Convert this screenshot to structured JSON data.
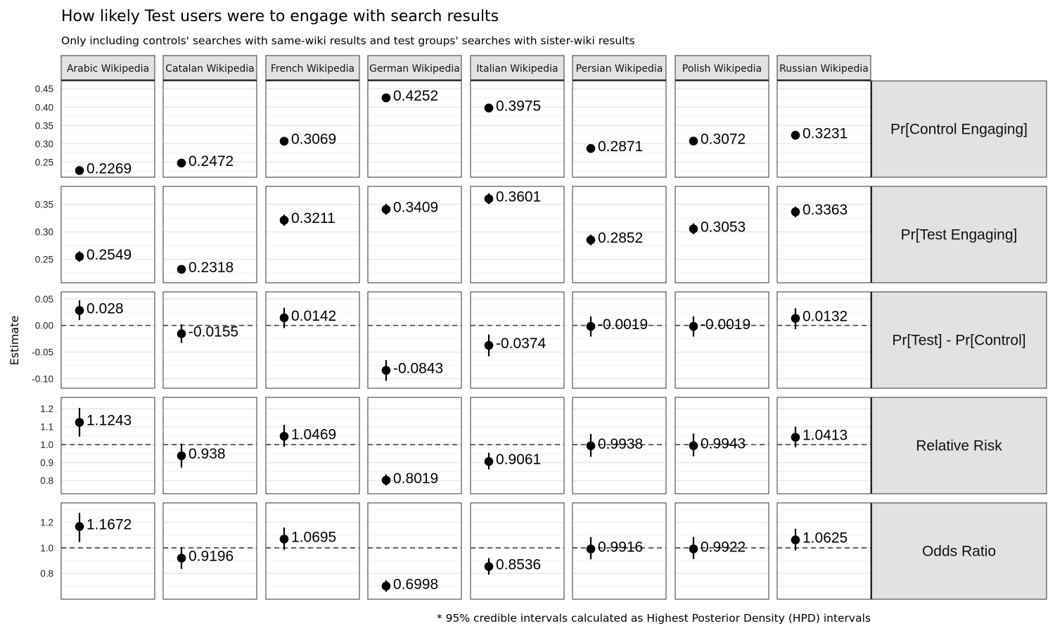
{
  "title": "How likely Test users were to engage with search results",
  "subtitle": "Only including controls' searches with same-wiki results and test groups' searches with sister-wiki results",
  "y_axis_label": "Estimate",
  "caption": "* 95% credible intervals calculated as Highest Posterior Density (HPD) intervals",
  "chart_data": {
    "type": "scatter",
    "title": "How likely Test users were to engage with search results",
    "subtitle": "Only including controls' searches with same-wiki results and test groups' searches with sister-wiki results",
    "ylabel": "Estimate",
    "grid": true,
    "columns": [
      "Arabic Wikipedia",
      "Catalan Wikipedia",
      "French Wikipedia",
      "German Wikipedia",
      "Italian Wikipedia",
      "Persian Wikipedia",
      "Polish Wikipedia",
      "Russian Wikipedia"
    ],
    "rows": [
      {
        "name": "Pr[Control Engaging]",
        "ylim": [
          0.22,
          0.46
        ],
        "ticks": [
          0.25,
          0.3,
          0.35,
          0.4,
          0.45
        ],
        "tick_labels": [
          "0.25",
          "0.30",
          "0.35",
          "0.40",
          "0.45"
        ],
        "reference": null,
        "values": [
          0.2269,
          0.2472,
          0.3069,
          0.4252,
          0.3975,
          0.2871,
          0.3072,
          0.3231
        ],
        "labels": [
          "0.2269",
          "0.2472",
          "0.3069",
          "0.4252",
          "0.3975",
          "0.2871",
          "0.3072",
          "0.3231"
        ],
        "lower": [
          0.2255,
          0.2458,
          0.3055,
          0.4238,
          0.3961,
          0.2857,
          0.3058,
          0.3217
        ],
        "upper": [
          0.2283,
          0.2486,
          0.3083,
          0.4266,
          0.3989,
          0.2885,
          0.3086,
          0.3245
        ]
      },
      {
        "name": "Pr[Test Engaging]",
        "ylim": [
          0.215,
          0.375
        ],
        "ticks": [
          0.25,
          0.3,
          0.35
        ],
        "tick_labels": [
          "0.25",
          "0.30",
          "0.35"
        ],
        "reference": null,
        "values": [
          0.2549,
          0.2318,
          0.3211,
          0.3409,
          0.3601,
          0.2852,
          0.3053,
          0.3363
        ],
        "labels": [
          "0.2549",
          "0.2318",
          "0.3211",
          "0.3409",
          "0.3601",
          "0.2852",
          "0.3053",
          "0.3363"
        ],
        "lower": [
          0.2455,
          0.2245,
          0.311,
          0.331,
          0.3505,
          0.2755,
          0.2955,
          0.3265
        ],
        "upper": [
          0.2645,
          0.2392,
          0.3315,
          0.351,
          0.37,
          0.295,
          0.3155,
          0.346
        ]
      },
      {
        "name": "Pr[Test] - Pr[Control]",
        "ylim": [
          -0.11,
          0.055
        ],
        "ticks": [
          -0.1,
          -0.05,
          0.0,
          0.05
        ],
        "tick_labels": [
          "-0.10",
          "-0.05",
          "0.00",
          "0.05"
        ],
        "reference": 0,
        "values": [
          0.028,
          -0.0155,
          0.0142,
          -0.0843,
          -0.0374,
          -0.0019,
          -0.0019,
          0.0132
        ],
        "labels": [
          "0.028",
          "-0.0155",
          "0.0142",
          "-0.0843",
          "-0.0374",
          "-0.0019",
          "-0.0019",
          "0.0132"
        ],
        "lower": [
          0.01,
          -0.033,
          -0.005,
          -0.104,
          -0.058,
          -0.021,
          -0.021,
          -0.007
        ],
        "upper": [
          0.047,
          0.002,
          0.033,
          -0.065,
          -0.017,
          0.017,
          0.017,
          0.032
        ]
      },
      {
        "name": "Relative Risk",
        "ylim": [
          0.75,
          1.24
        ],
        "ticks": [
          0.8,
          0.9,
          1.0,
          1.1,
          1.2
        ],
        "tick_labels": [
          "0.8",
          "0.9",
          "1.0",
          "1.1",
          "1.2"
        ],
        "reference": 1,
        "values": [
          1.1243,
          0.938,
          1.0469,
          0.8019,
          0.9061,
          0.9938,
          0.9943,
          1.0413
        ],
        "labels": [
          "1.1243",
          "0.938",
          "1.0469",
          "0.8019",
          "0.9061",
          "0.9938",
          "0.9943",
          "1.0413"
        ],
        "lower": [
          1.045,
          0.872,
          0.988,
          0.772,
          0.862,
          0.932,
          0.935,
          0.985
        ],
        "upper": [
          1.205,
          1.005,
          1.11,
          0.834,
          0.955,
          1.06,
          1.062,
          1.1
        ]
      },
      {
        "name": "Odds Ratio",
        "ylim": [
          0.63,
          1.32
        ],
        "ticks": [
          0.8,
          1.0,
          1.2
        ],
        "tick_labels": [
          "0.8",
          "1.0",
          "1.2"
        ],
        "reference": 1,
        "values": [
          1.1672,
          0.9196,
          1.0695,
          0.6998,
          0.8536,
          0.9916,
          0.9922,
          1.0625
        ],
        "labels": [
          "1.1672",
          "0.9196",
          "1.0695",
          "0.6998",
          "0.8536",
          "0.9916",
          "0.9922",
          "1.0625"
        ],
        "lower": [
          1.045,
          0.835,
          0.985,
          0.655,
          0.79,
          0.91,
          0.912,
          0.98
        ],
        "upper": [
          1.275,
          1.005,
          1.16,
          0.745,
          0.92,
          1.085,
          1.085,
          1.15
        ]
      }
    ]
  }
}
